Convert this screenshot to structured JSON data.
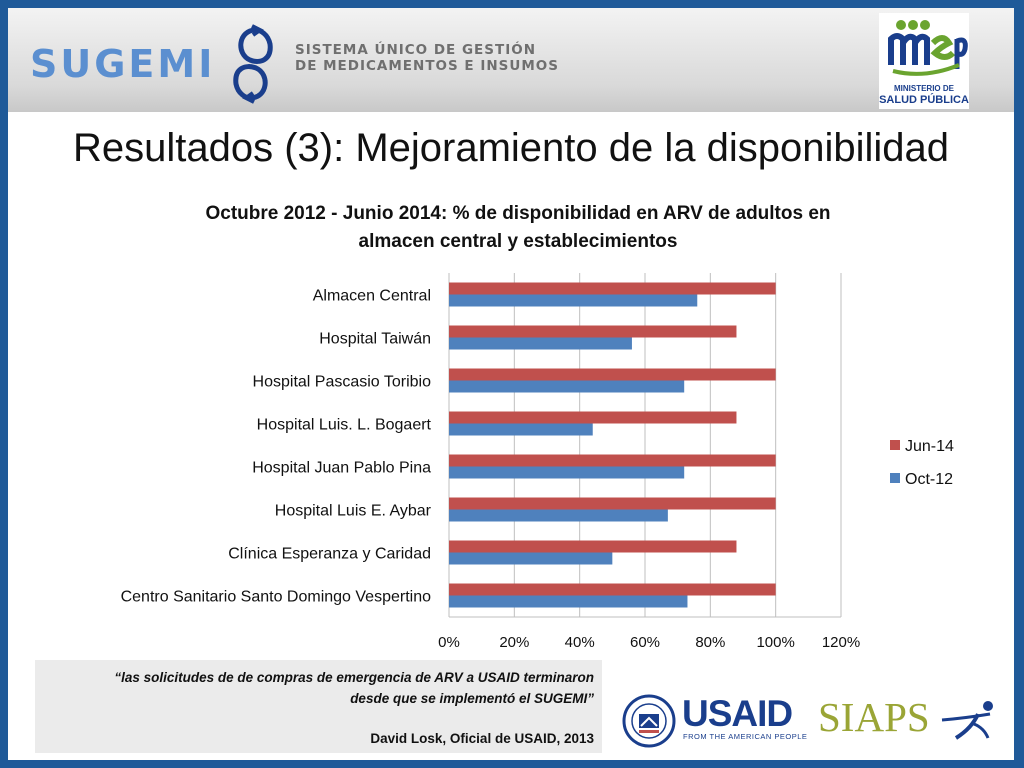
{
  "header": {
    "brand": "SUGEMI",
    "tagline_line1": "SISTEMA ÚNICO DE GESTIÓN",
    "tagline_line2": "DE MEDICAMENTOS E INSUMOS",
    "ministry_line1": "MINISTERIO DE",
    "ministry_line2": "SALUD PÚBLICA"
  },
  "slide_title": "Resultados (3): Mejoramiento de la disponibilidad",
  "chart_data": {
    "type": "bar",
    "orientation": "horizontal",
    "title_line1": "Octubre 2012 - Junio 2014: % de disponibilidad en ARV de adultos en",
    "title_line2": "almacen central y establecimientos",
    "categories": [
      "Almacen Central",
      "Hospital Taiwán",
      "Hospital Pascasio Toribio",
      "Hospital Luis. L. Bogaert",
      "Hospital Juan Pablo Pina",
      "Hospital Luis E. Aybar",
      "Clínica Esperanza y Caridad",
      "Centro Sanitario Santo Domingo Vespertino"
    ],
    "series": [
      {
        "name": "Jun-14",
        "color": "#c0504d",
        "values": [
          100,
          88,
          100,
          88,
          100,
          100,
          88,
          100
        ]
      },
      {
        "name": "Oct-12",
        "color": "#4f81bd",
        "values": [
          76,
          56,
          72,
          44,
          72,
          67,
          50,
          73
        ]
      }
    ],
    "xlim": [
      0,
      120
    ],
    "xticks": [
      "0%",
      "20%",
      "40%",
      "60%",
      "80%",
      "100%",
      "120%"
    ],
    "grid": true,
    "legend": "right"
  },
  "footer": {
    "quote_line1": "“las solicitudes de de compras de emergencia de ARV a USAID terminaron",
    "quote_line2": "desde que se implementó el SUGEMI”",
    "author": "David Losk, Oficial de USAID, 2013",
    "usaid": "USAID",
    "usaid_tagline": "FROM THE AMERICAN PEOPLE",
    "siaps": "SIAPS"
  }
}
